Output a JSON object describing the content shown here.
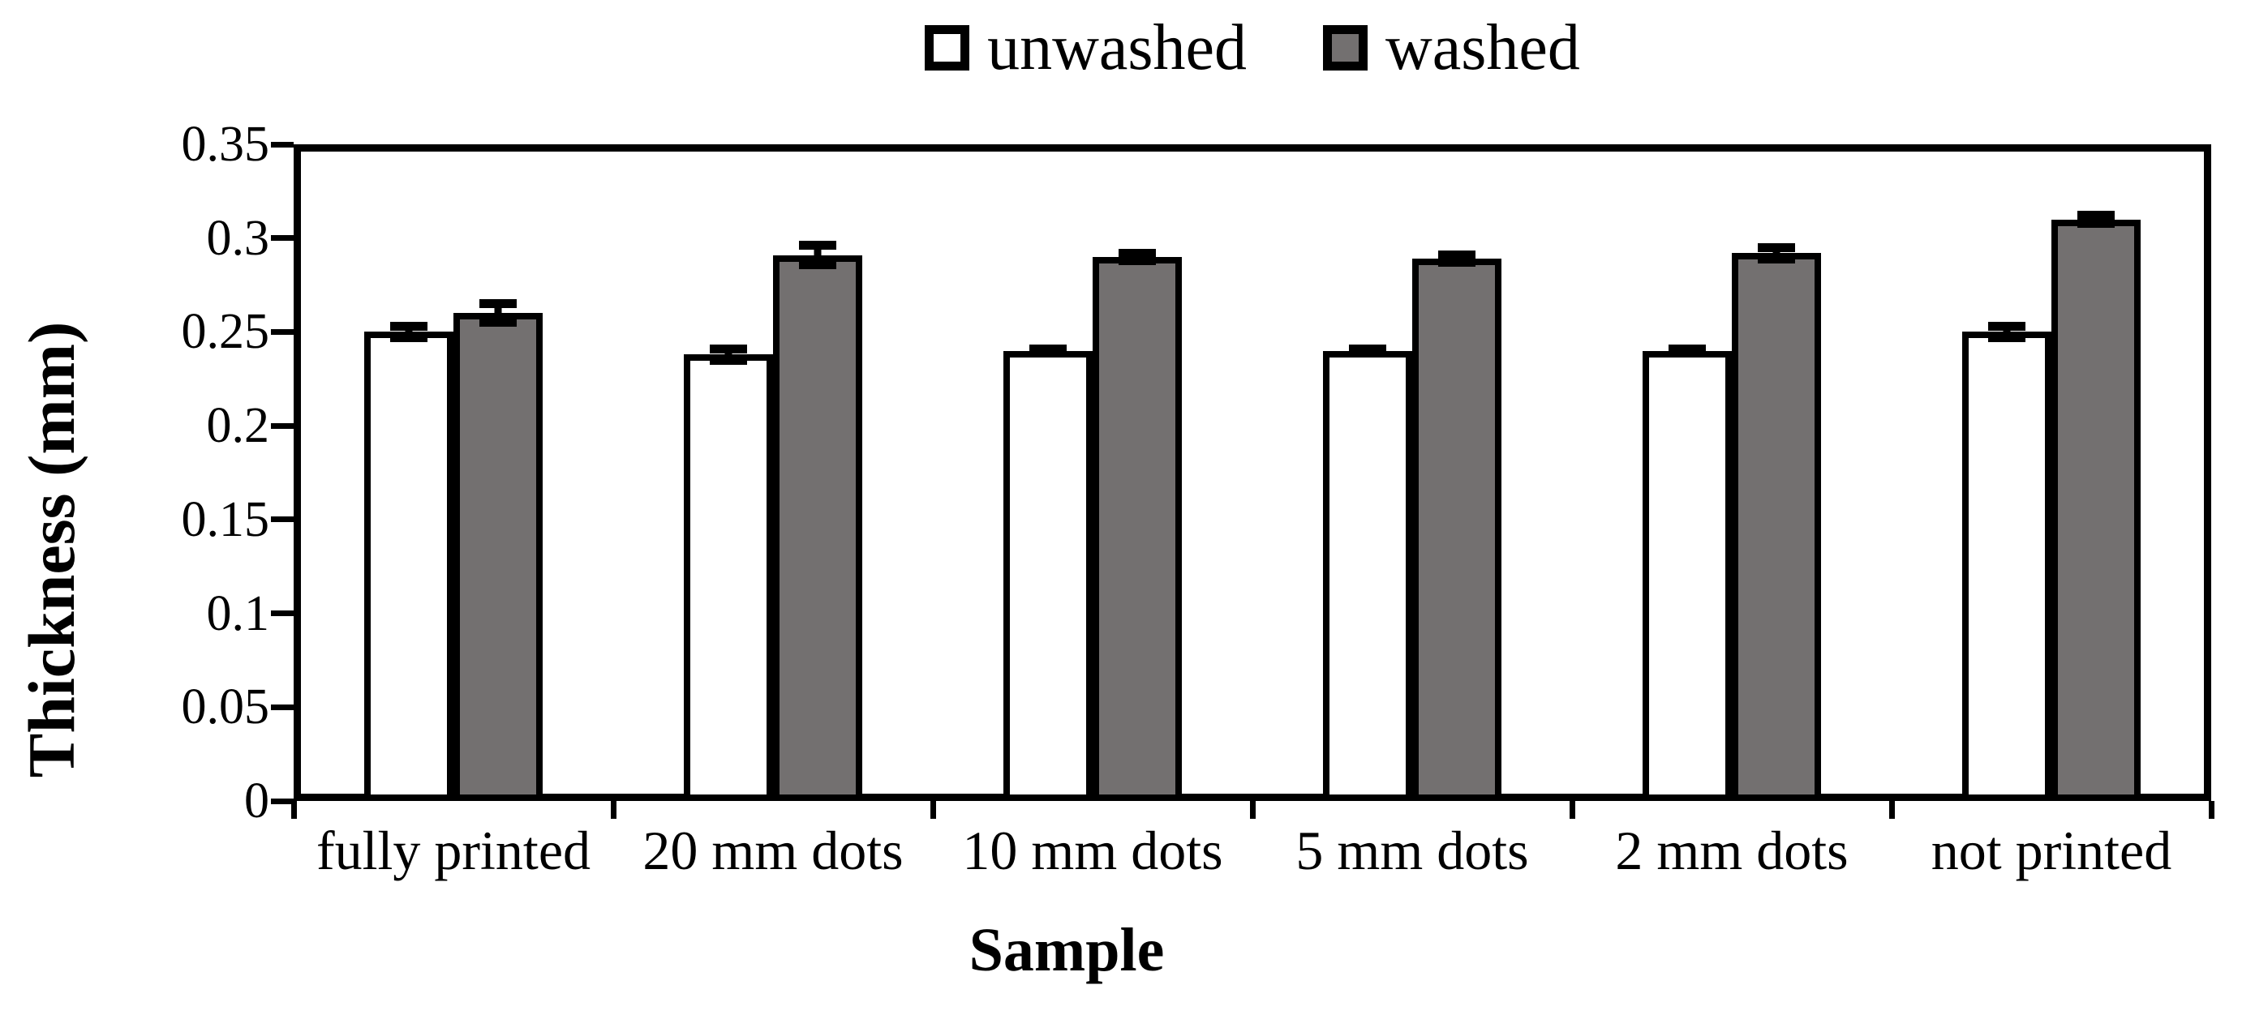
{
  "figure": {
    "background": "#ffffff",
    "frame_color": "#000000"
  },
  "legend": {
    "items": [
      {
        "label": "unwashed",
        "fill": "#ffffff"
      },
      {
        "label": "washed",
        "fill": "#737070"
      }
    ],
    "swatch_border": "#000000",
    "position": "top-center"
  },
  "chart_data": {
    "type": "bar",
    "title": "",
    "categories": [
      "fully printed",
      "20 mm dots",
      "10 mm dots",
      "5 mm dots",
      "2 mm dots",
      "not printed"
    ],
    "series": [
      {
        "name": "unwashed",
        "fill": "#ffffff",
        "values": [
          0.25,
          0.238,
          0.24,
          0.24,
          0.24,
          0.25
        ],
        "errors": [
          0.003,
          0.003,
          0.001,
          0.001,
          0.001,
          0.003
        ]
      },
      {
        "name": "washed",
        "fill": "#737070",
        "values": [
          0.26,
          0.291,
          0.29,
          0.289,
          0.292,
          0.31
        ],
        "errors": [
          0.005,
          0.005,
          0.002,
          0.002,
          0.003,
          0.002
        ]
      }
    ],
    "xlabel": "Sample",
    "ylabel": "Thickness (mm)",
    "ylim": [
      0,
      0.35
    ],
    "yticks": [
      0,
      0.05,
      0.1,
      0.15,
      0.2,
      0.25,
      0.3,
      0.35
    ],
    "ytick_labels": [
      "0",
      "0.05",
      "0.1",
      "0.15",
      "0.2",
      "0.25",
      "0.3",
      "0.35"
    ],
    "grid": false,
    "legend_position": "top-center",
    "bar_border_color": "#000000",
    "error_bar_color": "#000000"
  }
}
